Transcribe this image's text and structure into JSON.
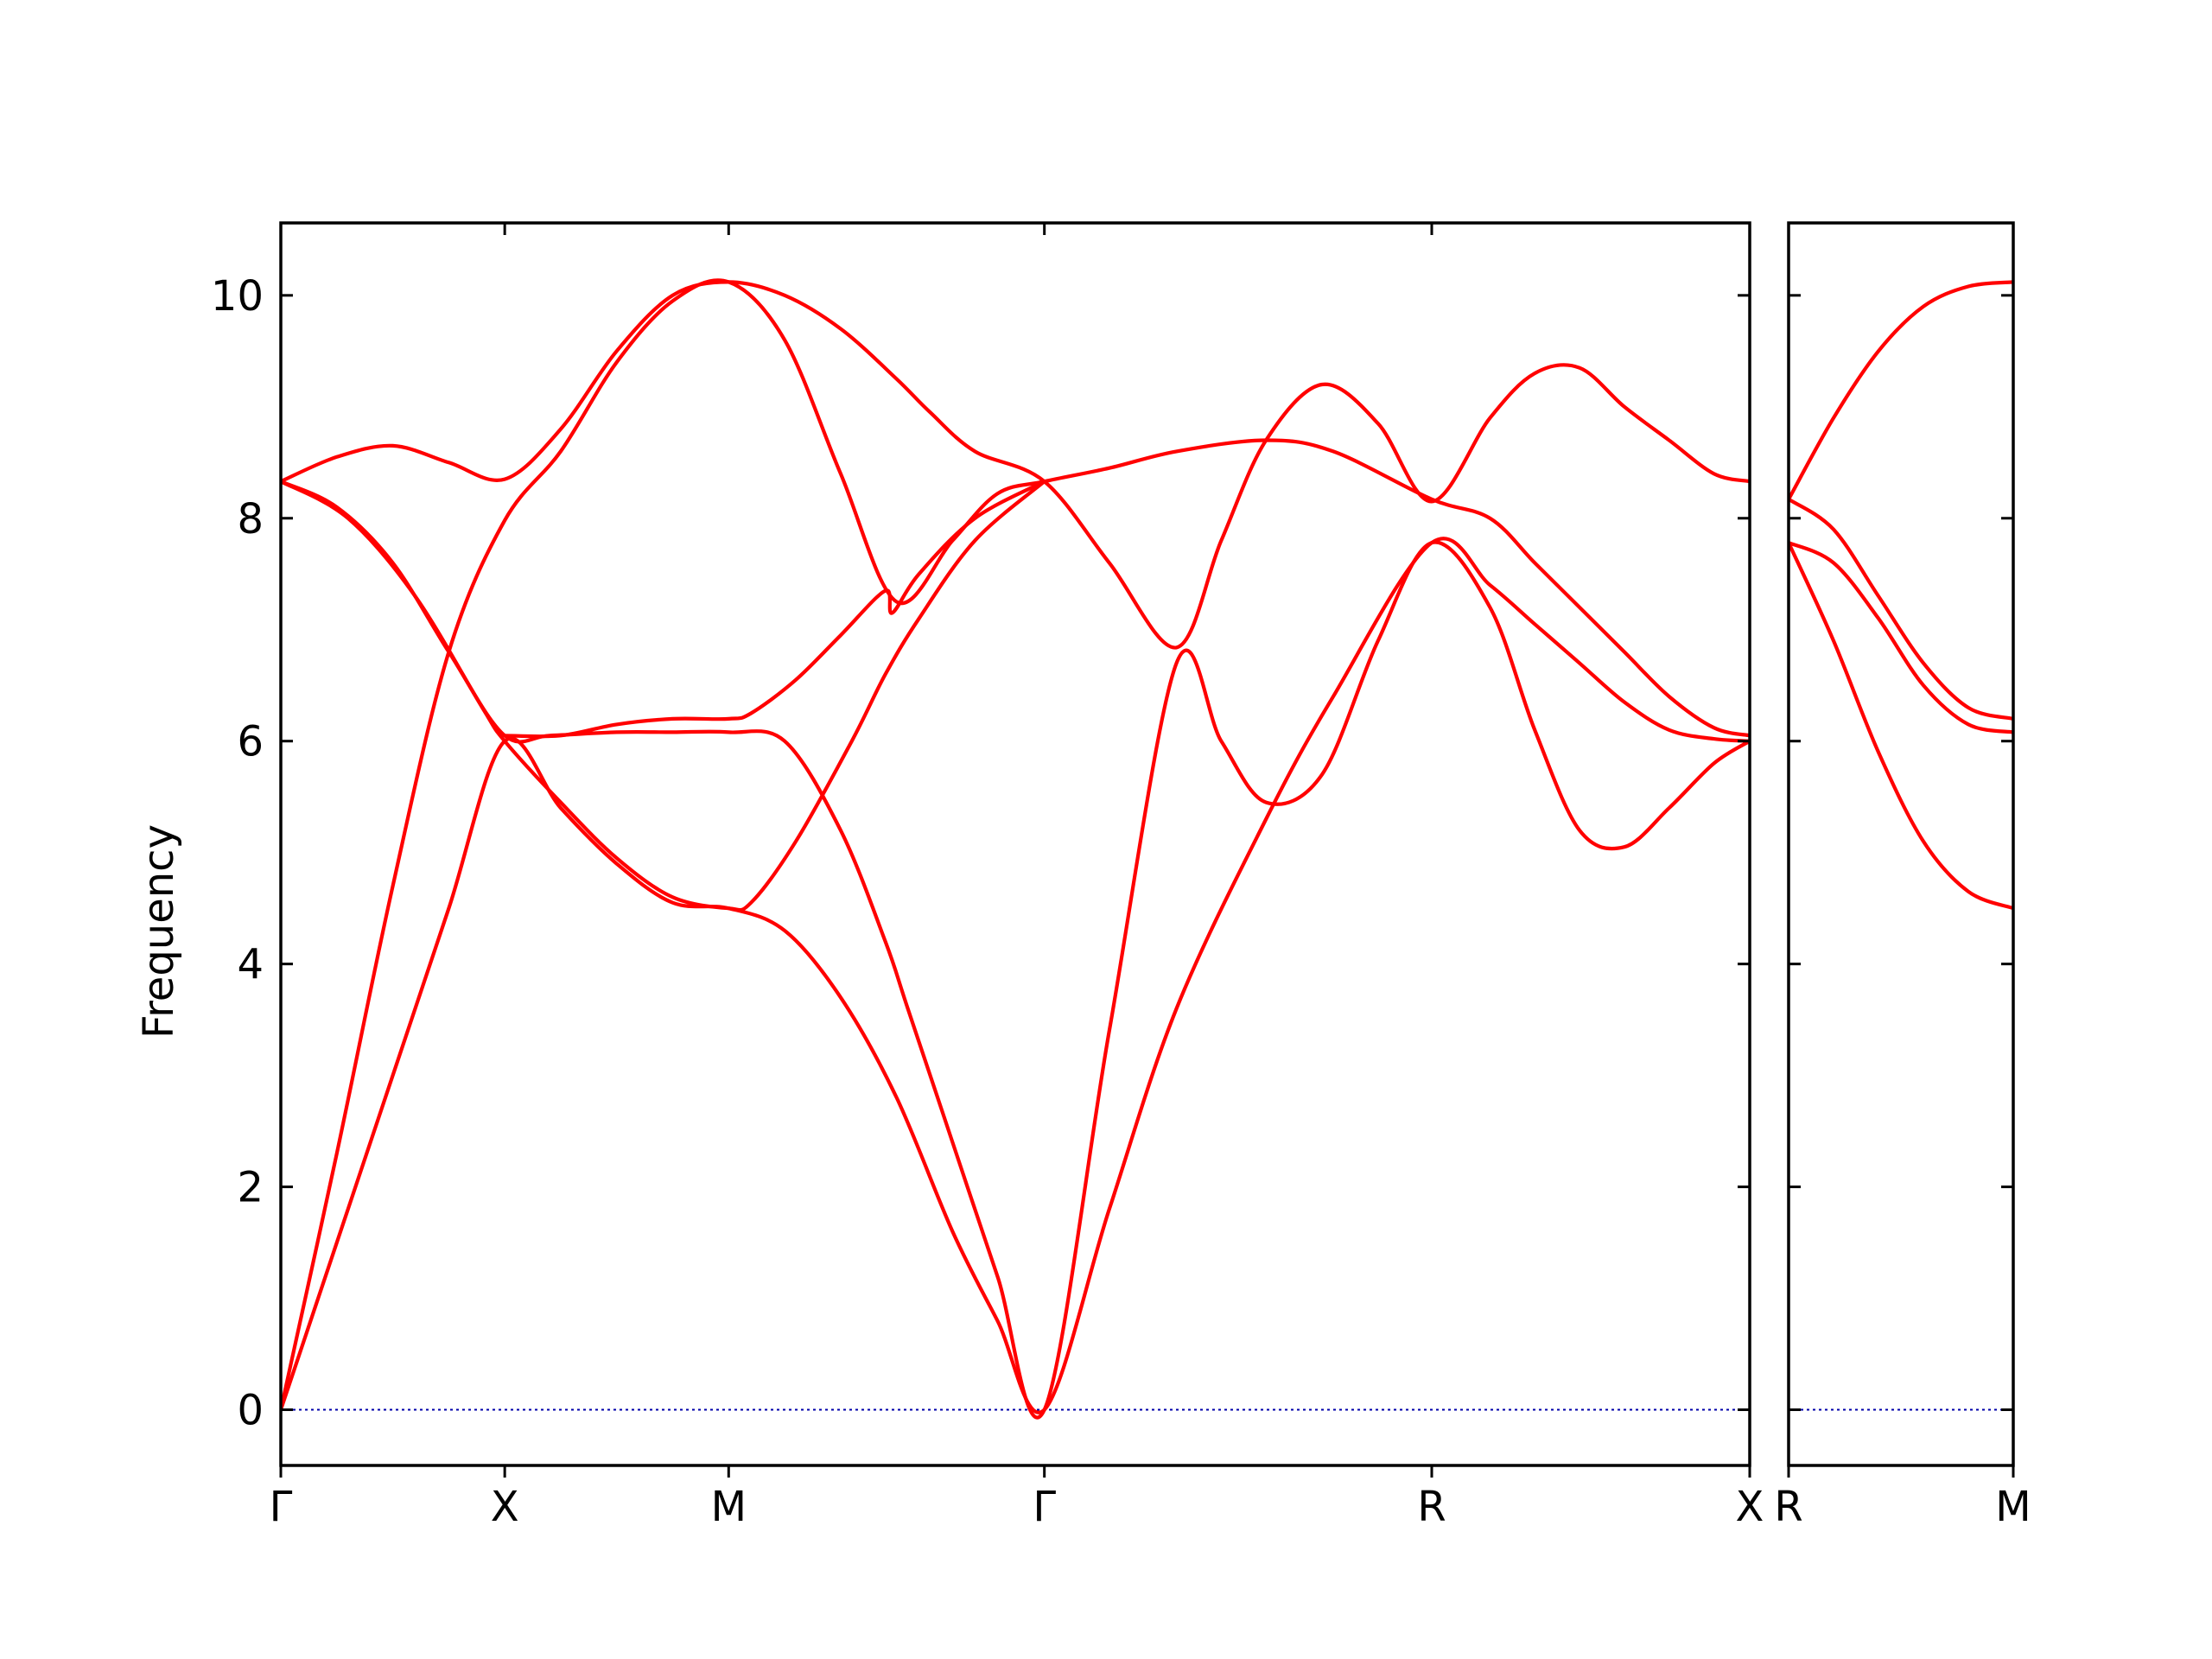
{
  "chart_data": {
    "type": "line",
    "title": "",
    "ylabel": "Frequency",
    "ylim": [
      -0.5,
      10.65
    ],
    "yticks": [
      0,
      2,
      4,
      6,
      8,
      10
    ],
    "band_color": "#ff0000",
    "zero_line_color": "#0000aa",
    "grid": false,
    "legend": "none",
    "panels": [
      {
        "xrange": [
          0,
          6.56
        ],
        "path_ticks": [
          {
            "x": 0,
            "label": "Γ"
          },
          {
            "x": 1,
            "label": "X"
          },
          {
            "x": 2,
            "label": "M"
          },
          {
            "x": 3.41,
            "label": "Γ"
          },
          {
            "x": 5.14,
            "label": "R"
          },
          {
            "x": 6.56,
            "label": "X"
          }
        ],
        "series": [
          {
            "x": [
              0,
              0.25,
              0.5,
              0.75,
              1,
              1.25,
              1.5,
              1.75,
              2,
              2.25,
              2.5,
              2.75,
              3,
              3.2,
              3.41,
              3.7,
              4.0,
              4.4,
              4.7,
              5.14,
              5.4,
              5.6,
              5.8,
              6.0,
              6.2,
              6.4,
              6.56
            ],
            "y": [
              0,
              1.5,
              3.0,
              4.5,
              6.0,
              5.4,
              4.9,
              4.55,
              4.5,
              4.3,
              3.7,
              2.8,
              1.6,
              0.8,
              0,
              1.8,
              3.6,
              5.3,
              6.4,
              7.78,
              7.4,
              7.05,
              6.7,
              6.35,
              6.1,
              6.02,
              6.0
            ]
          },
          {
            "x": [
              0,
              0.25,
              0.5,
              0.75,
              1,
              1.25,
              1.5,
              1.75,
              2,
              2.25,
              2.5,
              2.75,
              3,
              3.2,
              3.41,
              3.7,
              4.0,
              4.4,
              4.7,
              5.14,
              5.4,
              5.6,
              5.8,
              6.0,
              6.2,
              6.4,
              6.56
            ],
            "y": [
              0,
              2.3,
              4.7,
              6.8,
              7.98,
              8.6,
              9.4,
              9.95,
              10.12,
              9.6,
              8.4,
              7.25,
              7.8,
              8.22,
              8.33,
              8.45,
              8.6,
              8.7,
              8.6,
              8.17,
              8.0,
              7.6,
              7.2,
              6.8,
              6.4,
              6.12,
              6.05
            ]
          },
          {
            "x": [
              0,
              0.25,
              0.5,
              0.75,
              1,
              1.2,
              1.5,
              1.75,
              2,
              2.25,
              2.5,
              2.7,
              2.8,
              3,
              3.2,
              3.41,
              3.7,
              4.0,
              4.2,
              4.4,
              4.65,
              4.9,
              5.14,
              5.4,
              5.6,
              5.8,
              6.0,
              6.2,
              6.4,
              6.56
            ],
            "y": [
              8.33,
              8.1,
              7.6,
              6.8,
              6.05,
              6.05,
              6.08,
              6.08,
              6.08,
              6.0,
              5.2,
              4.2,
              3.6,
              2.4,
              1.2,
              0,
              3.4,
              6.7,
              6.0,
              5.45,
              5.7,
              6.9,
              7.78,
              7.2,
              6.1,
              5.2,
              5.05,
              5.4,
              5.8,
              6.0
            ]
          },
          {
            "x": [
              0,
              0.25,
              0.5,
              0.75,
              1,
              1.25,
              1.5,
              1.75,
              2,
              2.25,
              2.5,
              2.75,
              2.9,
              3.1,
              3.41,
              3.7,
              4.0,
              4.2,
              4.4,
              4.65,
              4.9,
              5.14,
              5.4,
              5.6,
              5.8,
              6.0,
              6.2,
              6.4,
              6.56
            ],
            "y": [
              8.33,
              8.55,
              8.65,
              8.5,
              8.35,
              8.8,
              9.5,
              10.0,
              10.12,
              10.0,
              9.7,
              9.25,
              8.95,
              8.6,
              8.33,
              7.6,
              6.84,
              7.8,
              8.7,
              9.2,
              8.85,
              8.15,
              8.9,
              9.3,
              9.35,
              9.0,
              8.7,
              8.4,
              8.33
            ]
          },
          {
            "x": [
              0,
              0.3,
              0.6,
              0.9,
              1,
              1.25,
              1.5,
              1.75,
              2,
              2.1,
              2.3,
              2.55,
              2.7,
              2.85,
              3.1,
              3.41
            ],
            "y": [
              8.33,
              8.0,
              7.3,
              6.3,
              6.0,
              5.45,
              4.95,
              4.6,
              4.5,
              4.55,
              5.1,
              6.0,
              6.6,
              7.1,
              7.8,
              8.33
            ]
          },
          {
            "x": [
              1,
              1.25,
              1.5,
              1.75,
              2,
              2.1,
              2.3,
              2.5,
              2.7,
              2.73,
              2.85,
              3.1,
              3.41
            ],
            "y": [
              6.05,
              6.05,
              6.15,
              6.2,
              6.2,
              6.25,
              6.55,
              6.95,
              7.35,
              7.15,
              7.5,
              8.0,
              8.33
            ]
          }
        ]
      },
      {
        "xrange": [
          0,
          1
        ],
        "path_ticks": [
          {
            "x": 0,
            "label": "R"
          },
          {
            "x": 1,
            "label": "M"
          }
        ],
        "series": [
          {
            "x": [
              0,
              0.2,
              0.4,
              0.6,
              0.8,
              1
            ],
            "y": [
              8.17,
              8.9,
              9.5,
              9.9,
              10.08,
              10.12
            ]
          },
          {
            "x": [
              0,
              0.2,
              0.4,
              0.6,
              0.8,
              1
            ],
            "y": [
              8.17,
              7.9,
              7.3,
              6.7,
              6.3,
              6.2
            ]
          },
          {
            "x": [
              0,
              0.2,
              0.4,
              0.6,
              0.8,
              1
            ],
            "y": [
              7.78,
              7.6,
              7.1,
              6.5,
              6.15,
              6.08
            ]
          },
          {
            "x": [
              0,
              0.2,
              0.4,
              0.6,
              0.8,
              1
            ],
            "y": [
              7.78,
              6.9,
              5.9,
              5.1,
              4.65,
              4.5
            ]
          }
        ]
      }
    ]
  }
}
